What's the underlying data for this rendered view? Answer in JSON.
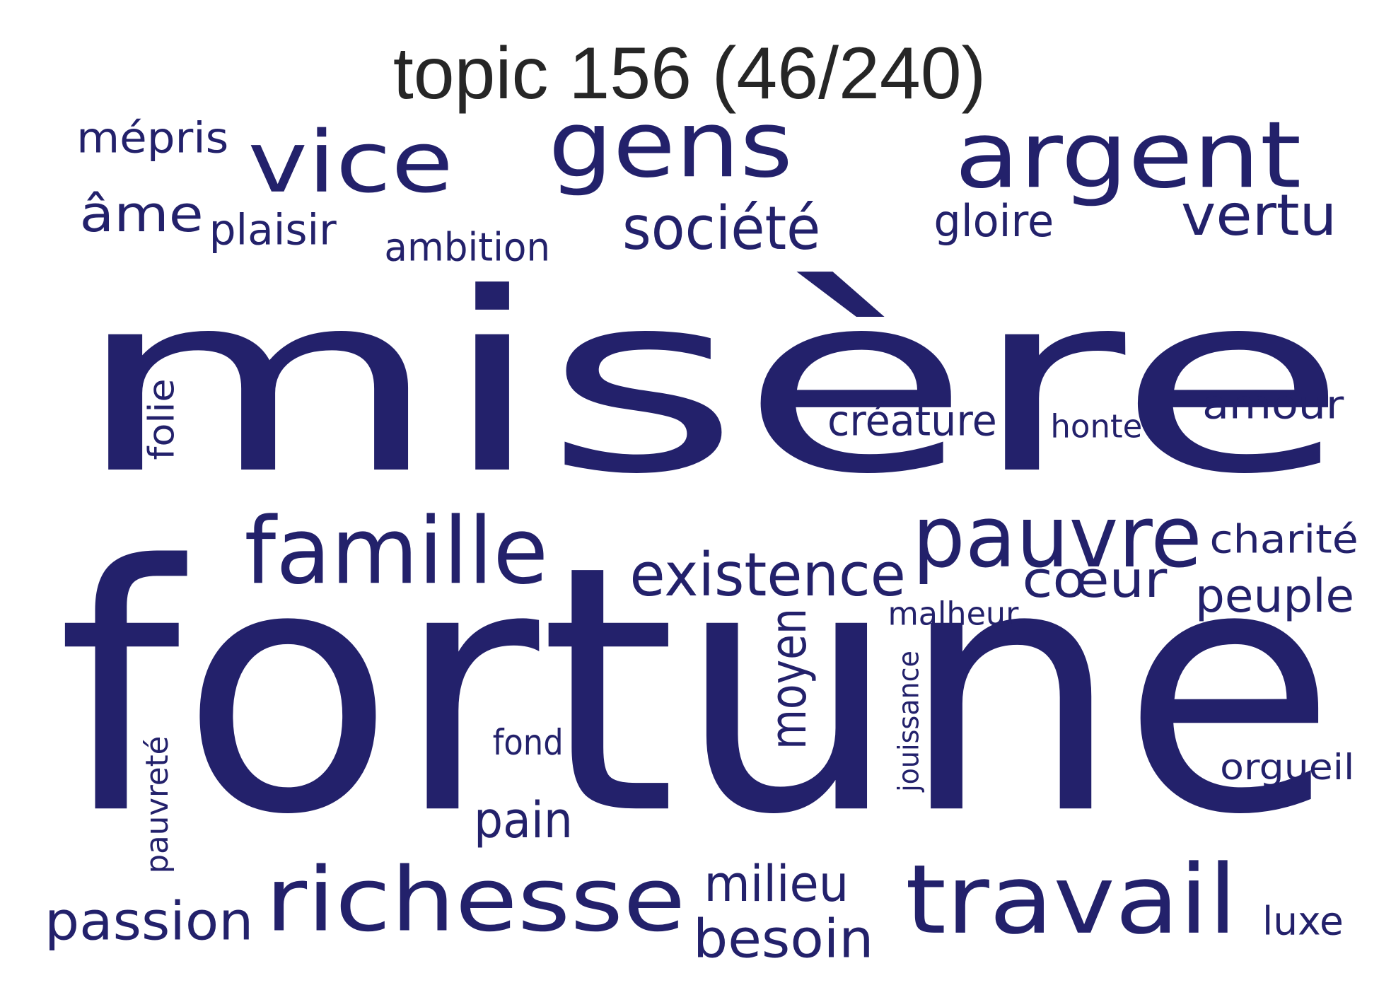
{
  "title": "topic 156 (46/240)",
  "word_color": "#23216b",
  "title_color": "#262626",
  "words": [
    {
      "text": "misère",
      "size": 600,
      "vertical": false
    },
    {
      "text": "fortune",
      "size": 560,
      "vertical": false
    },
    {
      "text": "gens",
      "size": 140,
      "vertical": false
    },
    {
      "text": "argent",
      "size": 140,
      "vertical": false
    },
    {
      "text": "vice",
      "size": 130,
      "vertical": false
    },
    {
      "text": "famille",
      "size": 120,
      "vertical": false
    },
    {
      "text": "richesse",
      "size": 120,
      "vertical": false
    },
    {
      "text": "travail",
      "size": 120,
      "vertical": false
    },
    {
      "text": "pauvre",
      "size": 110,
      "vertical": false
    },
    {
      "text": "existence",
      "size": 85,
      "vertical": false
    },
    {
      "text": "société",
      "size": 80,
      "vertical": false
    },
    {
      "text": "passion",
      "size": 80,
      "vertical": false
    },
    {
      "text": "vertu",
      "size": 80,
      "vertical": false
    },
    {
      "text": "besoin",
      "size": 75,
      "vertical": false
    },
    {
      "text": "âme",
      "size": 75,
      "vertical": false
    },
    {
      "text": "cœur",
      "size": 70,
      "vertical": false
    },
    {
      "text": "moyen",
      "size": 70,
      "vertical": true
    },
    {
      "text": "peuple",
      "size": 65,
      "vertical": false
    },
    {
      "text": "milieu",
      "size": 65,
      "vertical": false
    },
    {
      "text": "pain",
      "size": 65,
      "vertical": false
    },
    {
      "text": "créature",
      "size": 60,
      "vertical": false
    },
    {
      "text": "gloire",
      "size": 60,
      "vertical": false
    },
    {
      "text": "mépris",
      "size": 60,
      "vertical": false
    },
    {
      "text": "plaisir",
      "size": 60,
      "vertical": false
    },
    {
      "text": "charité",
      "size": 55,
      "vertical": false
    },
    {
      "text": "amour",
      "size": 55,
      "vertical": false
    },
    {
      "text": "luxe",
      "size": 55,
      "vertical": false
    },
    {
      "text": "ambition",
      "size": 50,
      "vertical": false
    },
    {
      "text": "folie",
      "size": 50,
      "vertical": true
    },
    {
      "text": "fond",
      "size": 48,
      "vertical": false
    },
    {
      "text": "orgueil",
      "size": 45,
      "vertical": false
    },
    {
      "text": "pauvreté",
      "size": 42,
      "vertical": true
    },
    {
      "text": "honte",
      "size": 42,
      "vertical": false
    },
    {
      "text": "malheur",
      "size": 42,
      "vertical": false
    },
    {
      "text": "jouissance",
      "size": 38,
      "vertical": true
    }
  ]
}
